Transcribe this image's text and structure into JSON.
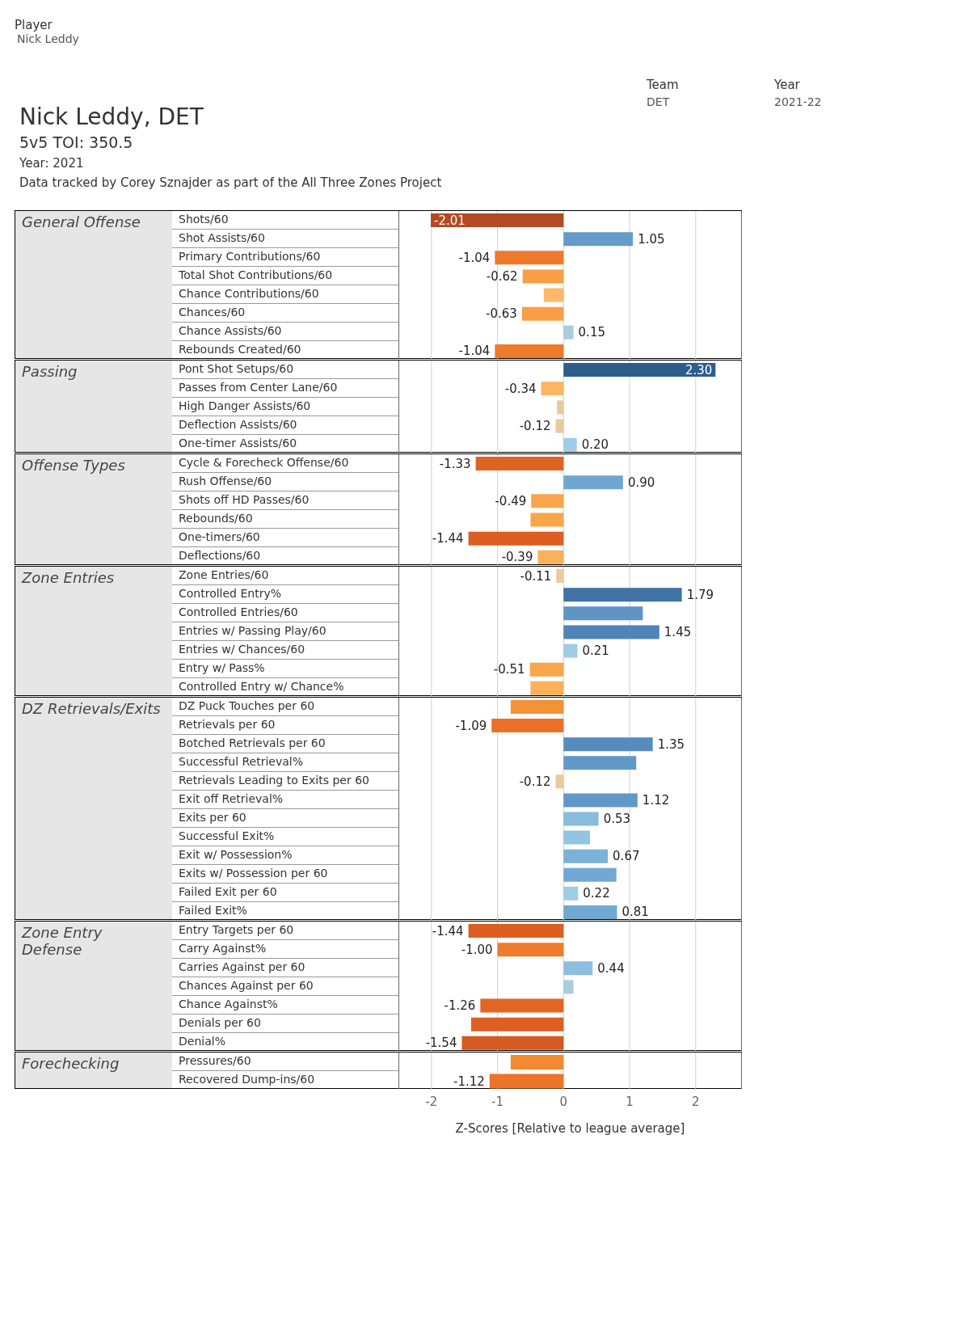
{
  "chart_data": [
    {
      "type": "bar",
      "orientation": "horizontal",
      "title": "Nick Leddy, DET",
      "subtitle": "5v5 TOI: 350.5",
      "annotations": [
        "Player",
        "Nick Leddy",
        "Team",
        "DET",
        "Year",
        "2021-22",
        "Year: 2021",
        "Data tracked by Corey Sznajder as part of the All Three Zones Project"
      ],
      "ylabel": "General Offense",
      "categories": [
        "Shots/60",
        "Shot Assists/60",
        "Primary Contributions/60",
        "Total Shot Contributions/60",
        "Chance Contributions/60",
        "Chances/60",
        "Chance Assists/60",
        "Rebounds Created/60"
      ],
      "values": [
        -2.01,
        1.05,
        -1.04,
        -0.62,
        -0.3,
        -0.63,
        0.15,
        -1.04
      ],
      "value_labels": [
        "-2.01",
        "1.05",
        "-1.04",
        "-0.62",
        null,
        "-0.63",
        "0.15",
        "-1.04"
      ],
      "colors": [
        "#b34a22",
        "#659ac9",
        "#ee7a2c",
        "#f99e45",
        "#fcb868",
        "#f99e45",
        "#a9cddc",
        "#ee7a2c"
      ],
      "xlim": [
        -2.5,
        2.7
      ],
      "xticks": [
        -2,
        -1,
        0,
        1,
        2
      ],
      "grid": "x",
      "tick_labels": "y"
    },
    {
      "type": "bar",
      "orientation": "horizontal",
      "ylabel": "Passing",
      "categories": [
        "Pont Shot Setups/60",
        "Passes from Center Lane/60",
        "High Danger Assists/60",
        "Deflection Assists/60",
        "One-timer Assists/60"
      ],
      "values": [
        2.3,
        -0.34,
        -0.1,
        -0.12,
        0.2
      ],
      "value_labels": [
        "2.30",
        "-0.34",
        null,
        "-0.12",
        "0.20"
      ],
      "colors": [
        "#2d5d8c",
        "#fbb662",
        "#ecc99c",
        "#ecc99c",
        "#9fcde6"
      ],
      "xlim": [
        -2.5,
        2.7
      ],
      "xticks": [
        -2,
        -1,
        0,
        1,
        2
      ],
      "grid": "x",
      "tick_labels": "y"
    },
    {
      "type": "bar",
      "orientation": "horizontal",
      "ylabel": "Offense Types",
      "categories": [
        "Cycle & Forecheck Offense/60",
        "Rush Offense/60",
        "Shots off HD Passes/60",
        "Rebounds/60",
        "One-timers/60",
        "Deflections/60"
      ],
      "values": [
        -1.33,
        0.9,
        -0.49,
        -0.5,
        -1.44,
        -0.39
      ],
      "value_labels": [
        "-1.33",
        "0.90",
        "-0.49",
        null,
        "-1.44",
        "-0.39"
      ],
      "colors": [
        "#df6324",
        "#70a7d2",
        "#f9a64b",
        "#f9a64b",
        "#dc5f21",
        "#fbb15a"
      ],
      "xlim": [
        -2.5,
        2.7
      ],
      "xticks": [
        -2,
        -1,
        0,
        1,
        2
      ],
      "grid": "x",
      "tick_labels": "y"
    },
    {
      "type": "bar",
      "orientation": "horizontal",
      "ylabel": "Zone Entries",
      "categories": [
        "Zone Entries/60",
        "Controlled Entry%",
        "Controlled Entries/60",
        "Entries w/ Passing Play/60",
        "Entries w/ Chances/60",
        "Entry w/ Pass%",
        "Controlled Entry w/ Chance%"
      ],
      "values": [
        -0.11,
        1.79,
        1.2,
        1.45,
        0.21,
        -0.51,
        -0.5
      ],
      "value_labels": [
        "-0.11",
        "1.79",
        null,
        "1.45",
        "0.21",
        "-0.51",
        null
      ],
      "colors": [
        "#ecc99c",
        "#3f73a5",
        "#5e95c6",
        "#5084b8",
        "#9fcde6",
        "#f9a64b",
        "#fbb15a"
      ],
      "xlim": [
        -2.5,
        2.7
      ],
      "xticks": [
        -2,
        -1,
        0,
        1,
        2
      ],
      "grid": "x",
      "tick_labels": "y"
    },
    {
      "type": "bar",
      "orientation": "horizontal",
      "ylabel": "DZ Retrievals/Exits",
      "categories": [
        "DZ Puck Touches per 60",
        "Retrievals per 60",
        "Botched Retrievals per 60",
        "Successful Retrieval%",
        "Retrievals Leading to Exits per 60",
        "Exit off Retrieval%",
        "Exits per 60",
        "Successful Exit%",
        "Exit w/ Possession%",
        "Exits w/ Possession per 60",
        "Failed Exit per 60",
        "Failed Exit%"
      ],
      "values": [
        -0.8,
        -1.09,
        1.35,
        1.1,
        -0.12,
        1.12,
        0.53,
        0.4,
        0.67,
        0.8,
        0.22,
        0.81
      ],
      "value_labels": [
        null,
        "-1.09",
        "1.35",
        null,
        "-0.12",
        "1.12",
        "0.53",
        null,
        "0.67",
        null,
        "0.22",
        "0.81"
      ],
      "colors": [
        "#f49236",
        "#ec7028",
        "#568bbd",
        "#6298c8",
        "#ecc99c",
        "#6298c8",
        "#88bbdd",
        "#92c5e2",
        "#7ab2d8",
        "#72a9d3",
        "#9fcde6",
        "#72a9d3"
      ],
      "xlim": [
        -2.5,
        2.7
      ],
      "xticks": [
        -2,
        -1,
        0,
        1,
        2
      ],
      "grid": "x",
      "tick_labels": "y"
    },
    {
      "type": "bar",
      "orientation": "horizontal",
      "ylabel": "Zone Entry Defense",
      "categories": [
        "Entry Targets per 60",
        "Carry Against%",
        "Carries Against per 60",
        "Chances Against per 60",
        "Chance Against%",
        "Denials per 60",
        "Denial%"
      ],
      "values": [
        -1.44,
        -1.0,
        0.44,
        0.15,
        -1.26,
        -1.4,
        -1.54
      ],
      "value_labels": [
        "-1.44",
        "-1.00",
        "0.44",
        null,
        "-1.26",
        null,
        "-1.54"
      ],
      "colors": [
        "#dc5f21",
        "#ef7b2c",
        "#8cbfdf",
        "#a9cddc",
        "#e26524",
        "#dd6022",
        "#d55a21"
      ],
      "xlim": [
        -2.5,
        2.7
      ],
      "xticks": [
        -2,
        -1,
        0,
        1,
        2
      ],
      "grid": "x",
      "tick_labels": "y"
    },
    {
      "type": "bar",
      "orientation": "horizontal",
      "ylabel": "Forechecking",
      "xlabel": "Z-Scores [Relative to league average]",
      "categories": [
        "Pressures/60",
        "Recovered Dump-ins/60"
      ],
      "values": [
        -0.8,
        -1.12
      ],
      "value_labels": [
        null,
        "-1.12"
      ],
      "colors": [
        "#f28a32",
        "#ec7429"
      ],
      "xlim": [
        -2.5,
        2.7
      ],
      "xticks": [
        -2,
        -1,
        0,
        1,
        2
      ],
      "grid": "x"
    }
  ]
}
